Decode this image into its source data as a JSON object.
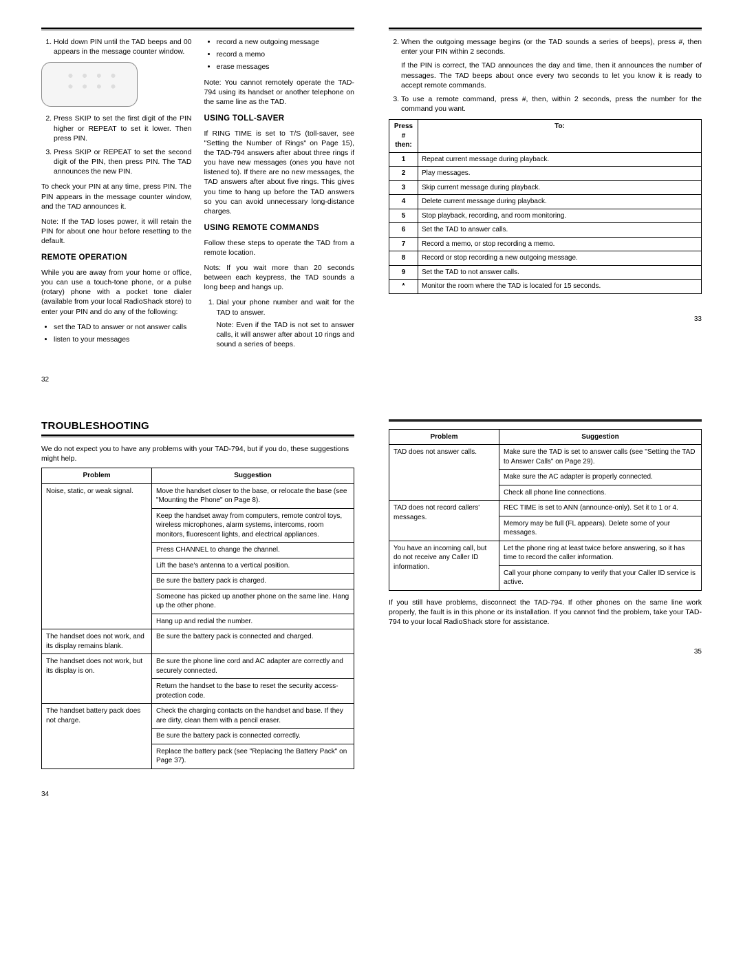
{
  "p32": {
    "step1": "Hold down PIN until the TAD beeps and 00 appears in the message counter window.",
    "step2": "Press SKIP to set the first digit of the PIN higher or REPEAT to set it lower. Then press PIN.",
    "step3": "Press SKIP or REPEAT to set the second digit of the PIN, then press PIN. The TAD announces the new PIN.",
    "check": "To check your PIN at any time, press PIN. The PIN appears in the message counter window, and the TAD announces it.",
    "note": "Note: If the TAD loses power, it will retain the PIN for about one hour before resetting to the default.",
    "remoteOpTitle": "REMOTE OPERATION",
    "remoteOpBody": "While you are away from your home or office, you can use a touch-tone phone, or a pulse (rotary) phone with a pocket tone dialer (available from your local RadioShack store) to enter your PIN and do any of the following:",
    "remoteBul1": "set the TAD to answer or not answer calls",
    "remoteBul2": "listen to your messages",
    "c2bul1": "record a new outgoing message",
    "c2bul2": "record a memo",
    "c2bul3": "erase messages",
    "c2note": "Note: You cannot remotely operate the TAD-794 using its handset or another telephone on the same line as the TAD.",
    "tollTitle": "USING TOLL-SAVER",
    "tollBody": "If RING TIME is set to T/S (toll-saver, see \"Setting the Number of Rings\" on Page 15), the TAD-794 answers after about three rings if you have new messages (ones you have not listened to). If there are no new messages, the TAD answers after about five rings. This gives you time to hang up before the TAD answers so you can avoid unnecessary long-distance charges.",
    "remCmdTitle": "USING REMOTE COMMANDS",
    "remCmdBody": "Follow these steps to operate the TAD from a remote location.",
    "remCmdNote": "Nots: If you wait more than 20 seconds between each keypress, the TAD sounds a long beep and hangs up.",
    "remCmdStep1": "Dial your phone number and wait for the TAD to answer.",
    "remCmdStep1Note": "Note: Even if the TAD is not set to answer calls, it will answer after about 10 rings and sound a series of beeps.",
    "pagenum": "32"
  },
  "p33": {
    "step2": "When the outgoing message begins (or the TAD sounds a series of beeps), press #, then enter your PIN within 2 seconds.",
    "step2b": "If the PIN is correct, the TAD announces the day and time, then it announces the number of messages. The TAD beeps about once every two seconds to let you know it is ready to accept remote commands.",
    "step3": "To use a remote command, press #, then, within 2 seconds, press the number for the command you want.",
    "th1": "Press # then:",
    "th2": "To:",
    "rows": [
      [
        "1",
        "Repeat current message during playback."
      ],
      [
        "2",
        "Play messages."
      ],
      [
        "3",
        "Skip current message during playback."
      ],
      [
        "4",
        "Delete current message during playback."
      ],
      [
        "5",
        "Stop playback, recording, and room monitoring."
      ],
      [
        "6",
        "Set the TAD to answer calls."
      ],
      [
        "7",
        "Record a memo, or stop recording a memo."
      ],
      [
        "8",
        "Record or stop recording a new outgoing message."
      ],
      [
        "9",
        "Set the TAD to not answer calls."
      ],
      [
        "*",
        "Monitor the room where the TAD is located for 15 seconds."
      ]
    ],
    "pagenum": "33"
  },
  "p34": {
    "title": "TROUBLESHOOTING",
    "intro": "We do not expect you to have any problems with your TAD-794, but if you do, these suggestions might help.",
    "thP": "Problem",
    "thS": "Suggestion",
    "rows": [
      {
        "p": "Noise, static, or weak signal.",
        "s": [
          "Move the handset closer to the base, or relocate the base (see \"Mounting the Phone\" on Page 8).",
          "Keep the handset away from computers, remote control toys, wireless microphones, alarm systems, intercoms, room monitors, fluorescent lights, and electrical appliances.",
          "Press CHANNEL to change the channel.",
          "Lift the base's antenna to a vertical position.",
          "Be sure the battery pack is charged.",
          "Someone has picked up another phone on the same line. Hang up the other phone.",
          "Hang up and redial the number."
        ]
      },
      {
        "p": "The handset does not work, and its display remains blank.",
        "s": [
          "Be sure the battery pack is connected and charged."
        ]
      },
      {
        "p": "The handset does not work, but its display is on.",
        "s": [
          "Be sure the phone line cord and AC adapter are correctly and securely connected.",
          "Return the handset to the base to reset the security access-protection code."
        ]
      },
      {
        "p": "The handset battery pack does not charge.",
        "s": [
          "Check the charging contacts on the handset and base. If they are dirty, clean them with a pencil eraser.",
          "Be sure the battery pack is connected correctly.",
          "Replace the battery pack (see \"Replacing the Battery Pack\" on Page 37)."
        ]
      }
    ],
    "pagenum": "34"
  },
  "p35": {
    "thP": "Problem",
    "thS": "Suggestion",
    "rows": [
      {
        "p": "TAD does not answer calls.",
        "s": [
          "Make sure the TAD is set to answer calls (see \"Setting the TAD to Answer Calls\" on Page 29).",
          "Make sure the AC adapter is properly connected.",
          "Check all phone line connections."
        ]
      },
      {
        "p": "TAD does not record callers' messages.",
        "s": [
          "REC TIME is set to ANN (announce-only). Set it to 1 or 4.",
          "Memory may be full (FL appears). Delete some of your messages."
        ]
      },
      {
        "p": "You have an incoming call, but do not receive any Caller ID information.",
        "s": [
          "Let the phone ring at least twice before answering, so it has time to record the caller information.",
          "Call your phone company to verify that your Caller ID service is active."
        ]
      }
    ],
    "outro": "If you still have problems, disconnect the TAD-794. If other phones on the same line work properly, the fault is in this phone or its installation. If you cannot find the problem, take your TAD-794 to your local RadioShack store for assistance.",
    "pagenum": "35"
  }
}
